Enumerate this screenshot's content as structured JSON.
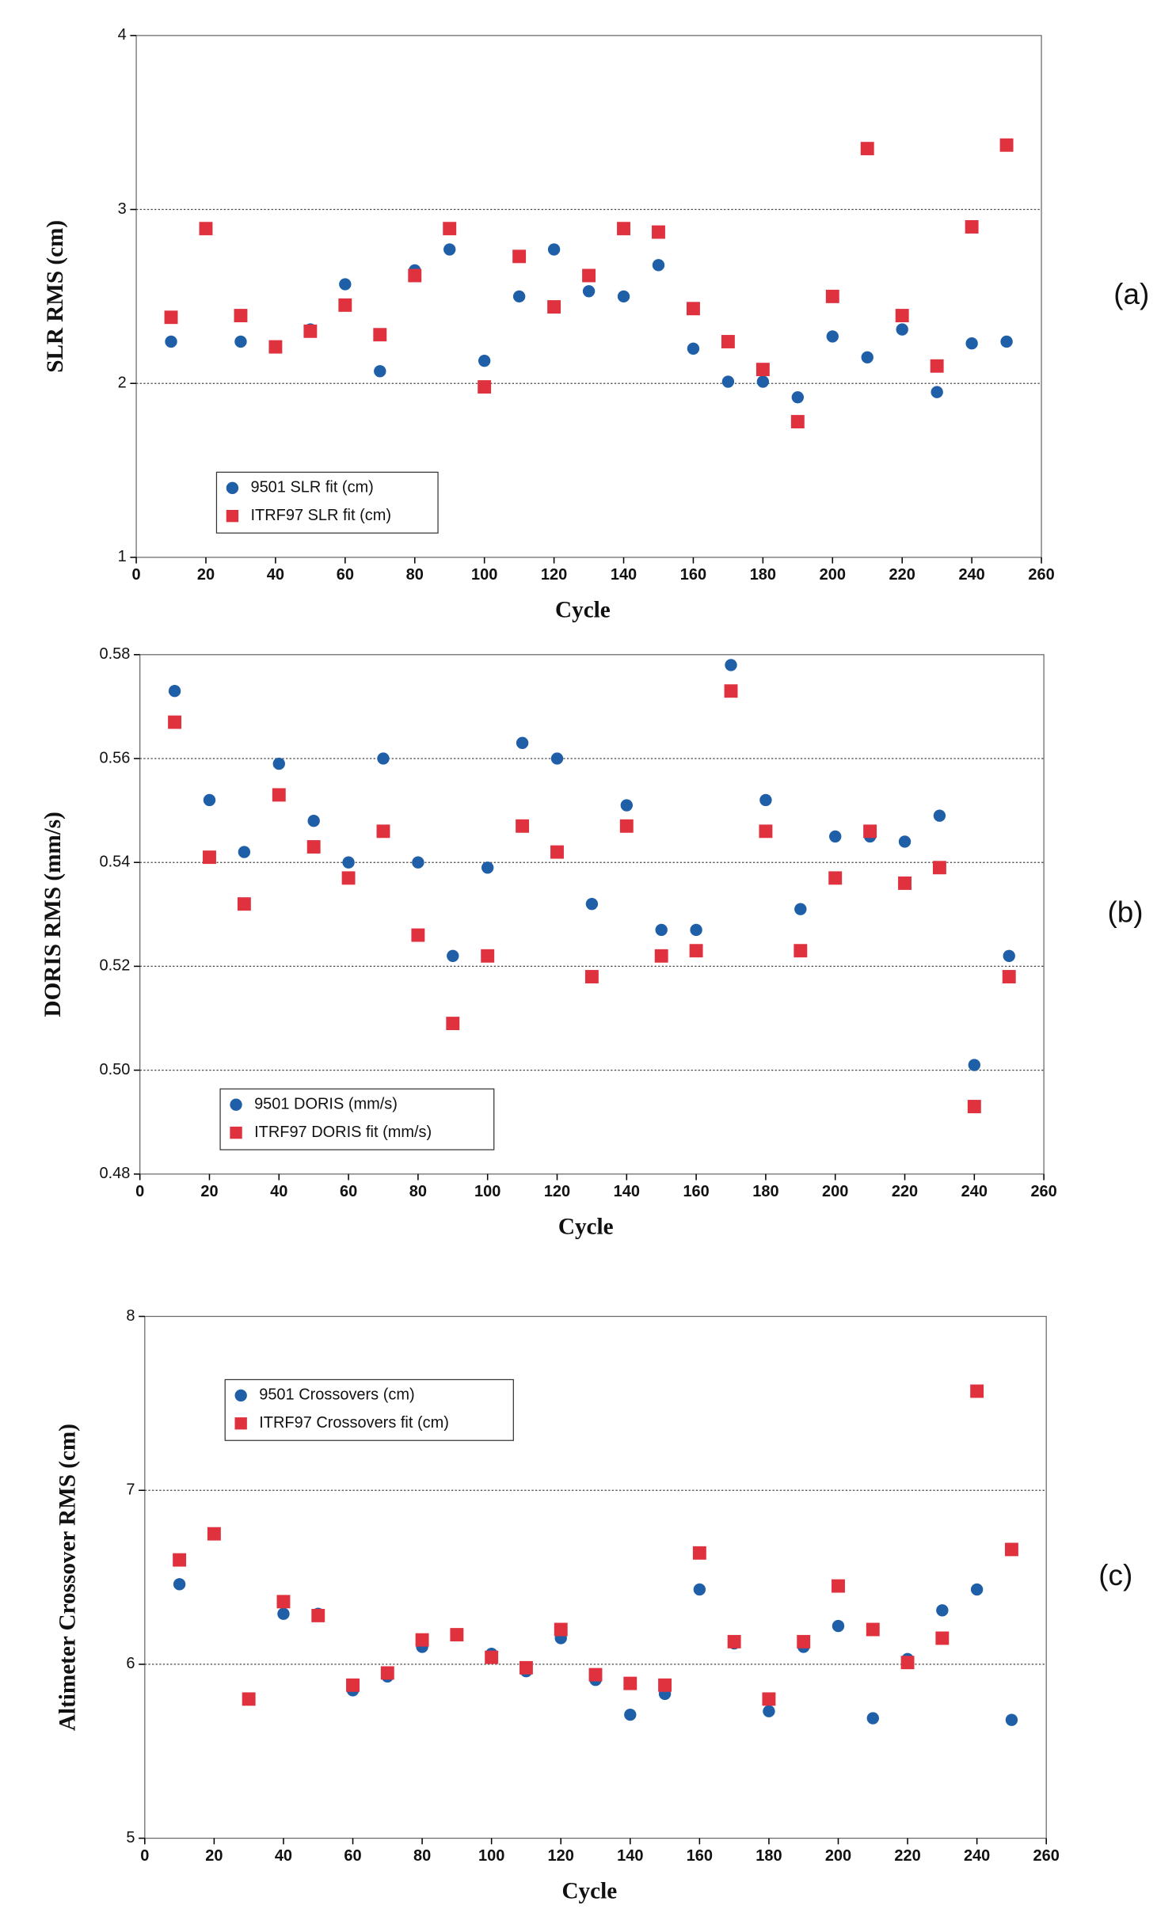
{
  "chart_data": [
    {
      "type": "scatter",
      "y_label": "SLR RMS (cm)",
      "x_label": "Cycle",
      "annotation": "(a)",
      "x": [
        10,
        20,
        30,
        40,
        50,
        60,
        70,
        80,
        90,
        100,
        110,
        120,
        130,
        140,
        150,
        160,
        170,
        180,
        190,
        200,
        210,
        220,
        230,
        240,
        250
      ],
      "series": [
        {
          "name": "9501 SLR fit (cm)",
          "color": "#1f5fa8",
          "marker": "circle",
          "values": [
            2.24,
            null,
            2.24,
            null,
            2.31,
            2.57,
            2.07,
            2.65,
            2.77,
            2.13,
            2.5,
            2.77,
            2.53,
            2.5,
            2.68,
            2.2,
            2.01,
            2.01,
            1.92,
            2.27,
            2.15,
            2.31,
            1.95,
            2.23,
            2.24
          ]
        },
        {
          "name": "ITRF97 SLR fit (cm)",
          "color": "#e0313f",
          "marker": "square",
          "values": [
            2.38,
            2.89,
            2.39,
            2.21,
            2.3,
            2.45,
            2.28,
            2.62,
            2.89,
            1.98,
            2.73,
            2.44,
            2.62,
            2.89,
            2.87,
            2.43,
            2.24,
            2.08,
            1.78,
            2.5,
            3.35,
            2.39,
            2.1,
            2.9,
            3.37
          ]
        }
      ],
      "xlim": [
        0,
        260
      ],
      "xticks": [
        0,
        20,
        40,
        60,
        80,
        100,
        120,
        140,
        160,
        180,
        200,
        220,
        240,
        260
      ],
      "ylim": [
        1,
        4
      ],
      "yticks": [
        1,
        2,
        3,
        4
      ],
      "grid": true,
      "legend": "lower left"
    },
    {
      "type": "scatter",
      "y_label": "DORIS RMS (mm/s)",
      "x_label": "Cycle",
      "annotation": "(b)",
      "x": [
        10,
        20,
        30,
        40,
        50,
        60,
        70,
        80,
        90,
        100,
        110,
        120,
        130,
        140,
        150,
        160,
        170,
        180,
        190,
        200,
        210,
        220,
        230,
        240,
        250
      ],
      "series": [
        {
          "name": "9501 DORIS (mm/s)",
          "color": "#1f5fa8",
          "marker": "circle",
          "values": [
            0.573,
            0.552,
            0.542,
            0.559,
            0.548,
            0.54,
            0.56,
            0.54,
            0.522,
            0.539,
            0.563,
            0.56,
            0.532,
            0.551,
            0.527,
            0.527,
            0.578,
            0.552,
            0.531,
            0.545,
            0.545,
            0.544,
            0.549,
            0.501,
            0.522
          ]
        },
        {
          "name": "ITRF97 DORIS fit (mm/s)",
          "color": "#e0313f",
          "marker": "square",
          "values": [
            0.567,
            0.541,
            0.532,
            0.553,
            0.543,
            0.537,
            0.546,
            0.526,
            0.509,
            0.522,
            0.547,
            0.542,
            0.518,
            0.547,
            0.522,
            0.523,
            0.573,
            0.546,
            0.523,
            0.537,
            0.546,
            0.536,
            0.539,
            0.493,
            0.518
          ]
        }
      ],
      "xlim": [
        0,
        260
      ],
      "xticks": [
        0,
        20,
        40,
        60,
        80,
        100,
        120,
        140,
        160,
        180,
        200,
        220,
        240,
        260
      ],
      "ylim": [
        0.48,
        0.58
      ],
      "yticks": [
        0.48,
        {
          "value": 0.5,
          "label": "0.50"
        },
        0.52,
        0.54,
        0.56,
        0.58
      ],
      "grid": true,
      "legend": "lower left"
    },
    {
      "type": "scatter",
      "y_label": "Altimeter Crossover RMS (cm)",
      "x_label": "Cycle",
      "annotation": "(c)",
      "x": [
        10,
        20,
        30,
        40,
        50,
        60,
        70,
        80,
        90,
        100,
        110,
        120,
        130,
        140,
        150,
        160,
        170,
        180,
        190,
        200,
        210,
        220,
        230,
        240,
        250
      ],
      "series": [
        {
          "name": "9501 Crossovers (cm)",
          "color": "#1f5fa8",
          "marker": "circle",
          "values": [
            6.46,
            6.75,
            5.8,
            6.29,
            6.29,
            5.85,
            5.93,
            6.1,
            null,
            6.06,
            5.96,
            6.15,
            5.91,
            5.71,
            5.83,
            6.43,
            6.12,
            5.73,
            6.1,
            6.22,
            5.69,
            6.03,
            6.31,
            6.43,
            5.68
          ]
        },
        {
          "name": "ITRF97 Crossovers fit (cm)",
          "color": "#e0313f",
          "marker": "square",
          "values": [
            6.6,
            6.75,
            5.8,
            6.36,
            6.28,
            5.88,
            5.95,
            6.14,
            6.17,
            6.04,
            5.98,
            6.2,
            5.94,
            5.89,
            5.88,
            6.64,
            6.13,
            5.8,
            6.13,
            6.45,
            6.2,
            6.01,
            6.15,
            7.57,
            6.66
          ]
        }
      ],
      "xlim": [
        0,
        260
      ],
      "xticks": [
        0,
        20,
        40,
        60,
        80,
        100,
        120,
        140,
        160,
        180,
        200,
        220,
        240,
        260
      ],
      "ylim": [
        5,
        8
      ],
      "yticks": [
        5,
        6,
        7,
        8
      ],
      "grid": true,
      "legend": "upper left"
    }
  ]
}
